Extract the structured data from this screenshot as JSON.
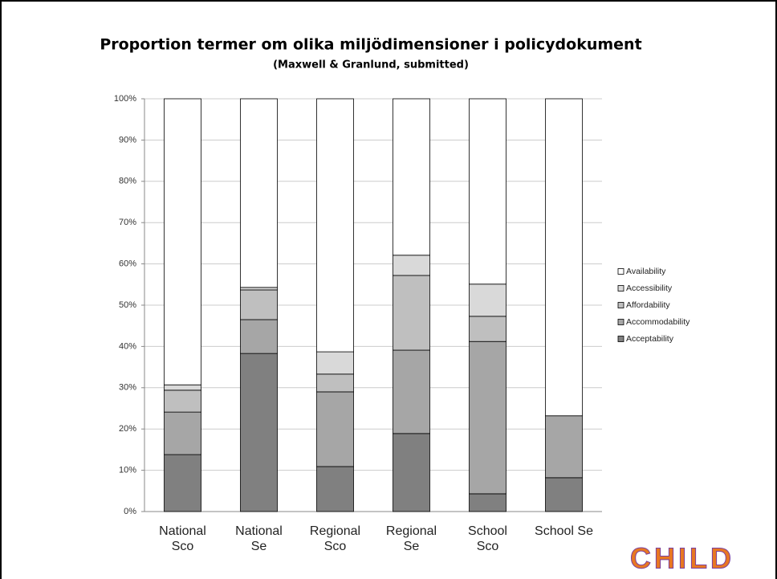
{
  "chart_data": {
    "type": "stacked_bar",
    "title": "Proportion termer om olika miljödimensioner i policydokument",
    "subtitle": "(Maxwell & Granlund, submitted)",
    "categories": [
      [
        "National",
        "Sco"
      ],
      [
        "National",
        "Se"
      ],
      [
        "Regional",
        "Sco"
      ],
      [
        "Regional",
        "Se"
      ],
      [
        "School",
        "Sco"
      ],
      [
        "School Se"
      ]
    ],
    "series": [
      {
        "name": "Acceptability",
        "color": "#808080",
        "values": [
          13.8,
          38.3,
          10.9,
          18.9,
          4.3,
          8.2
        ]
      },
      {
        "name": "Accommodability",
        "color": "#a6a6a6",
        "values": [
          10.3,
          8.2,
          18.1,
          20.2,
          36.9,
          15.0
        ]
      },
      {
        "name": "Affordability",
        "color": "#bfbfbf",
        "values": [
          5.3,
          7.2,
          4.3,
          18.1,
          6.1,
          0
        ]
      },
      {
        "name": "Accessibility",
        "color": "#d9d9d9",
        "values": [
          1.3,
          0.6,
          5.4,
          4.9,
          7.8,
          0
        ]
      },
      {
        "name": "Availability",
        "color": "#ffffff",
        "values": [
          69.3,
          45.7,
          61.3,
          37.9,
          44.9,
          76.8
        ]
      }
    ],
    "ylim": [
      0,
      100
    ],
    "yticks": [
      {
        "value": 0,
        "label": "0%"
      },
      {
        "value": 10,
        "label": "10%"
      },
      {
        "value": 20,
        "label": "20%"
      },
      {
        "value": 30,
        "label": "30%"
      },
      {
        "value": 40,
        "label": "40%"
      },
      {
        "value": 50,
        "label": "50%"
      },
      {
        "value": 60,
        "label": "60%"
      },
      {
        "value": 70,
        "label": "70%"
      },
      {
        "value": 80,
        "label": "80%"
      },
      {
        "value": 90,
        "label": "90%"
      },
      {
        "value": 100,
        "label": "100%"
      }
    ],
    "grid": true,
    "legend": "right",
    "logo": "CHILD"
  }
}
